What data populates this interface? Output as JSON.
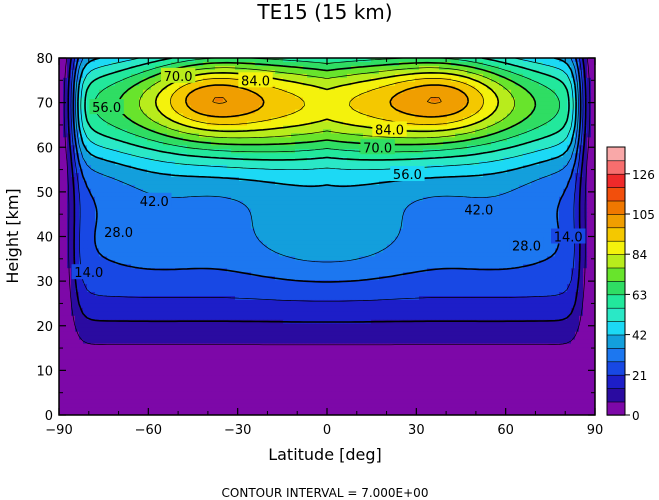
{
  "chart_data": {
    "type": "heatmap",
    "subtype": "filled-contour",
    "title": "TE15 (15 km)",
    "xlabel": "Latitude [deg]",
    "ylabel": "Height [km]",
    "xlim": [
      -90,
      90
    ],
    "ylim": [
      0,
      80
    ],
    "x_ticks": [
      -90,
      -60,
      -30,
      0,
      30,
      60,
      90
    ],
    "y_ticks": [
      0,
      10,
      20,
      30,
      40,
      50,
      60,
      70,
      80
    ],
    "contour_interval": 7.0,
    "footer": "CONTOUR INTERVAL = 7.000E+00",
    "colorbar": {
      "levels": [
        0,
        7,
        14,
        21,
        28,
        35,
        42,
        49,
        56,
        63,
        70,
        77,
        84,
        91,
        98,
        105,
        112,
        119,
        126,
        133
      ],
      "tick_labels": [
        0,
        21,
        42,
        63,
        84,
        105,
        126
      ],
      "colors": [
        "#7d08a8",
        "#2a0ba0",
        "#1d1ec8",
        "#1848e4",
        "#1c77f0",
        "#139fdc",
        "#1cd9f5",
        "#2ae8c6",
        "#22e89c",
        "#2fdd63",
        "#68e42c",
        "#b8ec1c",
        "#f4f20c",
        "#f4c800",
        "#f09e00",
        "#f07800",
        "#f24f0c",
        "#ef2a2a",
        "#f76e6e",
        "#f9a8a8"
      ]
    },
    "contour_labels": [
      {
        "text": "14.0",
        "lat": -80,
        "h": 32
      },
      {
        "text": "28.0",
        "lat": -70,
        "h": 41
      },
      {
        "text": "42.0",
        "lat": -58,
        "h": 48
      },
      {
        "text": "56.0",
        "lat": -74,
        "h": 69
      },
      {
        "text": "70.0",
        "lat": -50,
        "h": 76
      },
      {
        "text": "84.0",
        "lat": -24,
        "h": 75
      },
      {
        "text": "84.0",
        "lat": 21,
        "h": 64
      },
      {
        "text": "70.0",
        "lat": 17,
        "h": 60
      },
      {
        "text": "56.0",
        "lat": 27,
        "h": 54
      },
      {
        "text": "42.0",
        "lat": 51,
        "h": 46
      },
      {
        "text": "28.0",
        "lat": 67,
        "h": 38
      },
      {
        "text": "14.0",
        "lat": 81,
        "h": 40
      }
    ]
  }
}
